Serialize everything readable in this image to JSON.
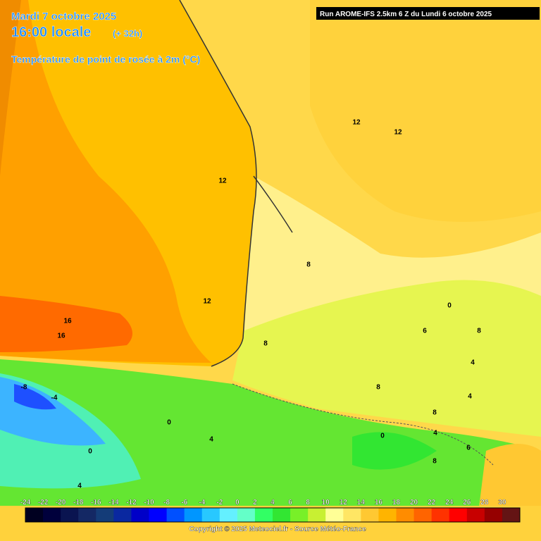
{
  "header": {
    "date": "Mardi 7 octobre 2025",
    "time": "16:00 locale",
    "lead": "(+ 32h)",
    "variable": "Température de point de rosée à 2m (°C)",
    "run": "Run AROME-IFS 2.5km 6 Z du Lundi 6 octobre 2025"
  },
  "contour_labels": [
    "12",
    "12",
    "12",
    "8",
    "12",
    "16",
    "16",
    "8",
    "0",
    "6",
    "8",
    "4",
    "8",
    "4",
    "0",
    "4",
    "0",
    "0",
    "8",
    "4",
    "6",
    "8",
    "-8",
    "-4",
    "4"
  ],
  "colorbar": {
    "ticks": [
      "-24",
      "-22",
      "-20",
      "-18",
      "-16",
      "-14",
      "-12",
      "-10",
      "-8",
      "-6",
      "-4",
      "-2",
      "0",
      "2",
      "4",
      "6",
      "8",
      "10",
      "12",
      "14",
      "16",
      "18",
      "20",
      "22",
      "24",
      "26",
      "28",
      "30"
    ],
    "colors": [
      "#000020",
      "#00003c",
      "#0a1450",
      "#142864",
      "#143c78",
      "#0a28a0",
      "#0000c8",
      "#0000ff",
      "#0050ff",
      "#0096ff",
      "#28c8ff",
      "#64f0ff",
      "#64ffc8",
      "#32ff64",
      "#32e632",
      "#78f028",
      "#c8f032",
      "#ffff96",
      "#ffe664",
      "#ffc832",
      "#ffb400",
      "#ff8c00",
      "#ff6400",
      "#ff3200",
      "#ff0000",
      "#c80000",
      "#960000",
      "#641414"
    ]
  },
  "footer": {
    "copyright": "Copyright © 2025 Meteociel.fr - Source Météo-France"
  }
}
